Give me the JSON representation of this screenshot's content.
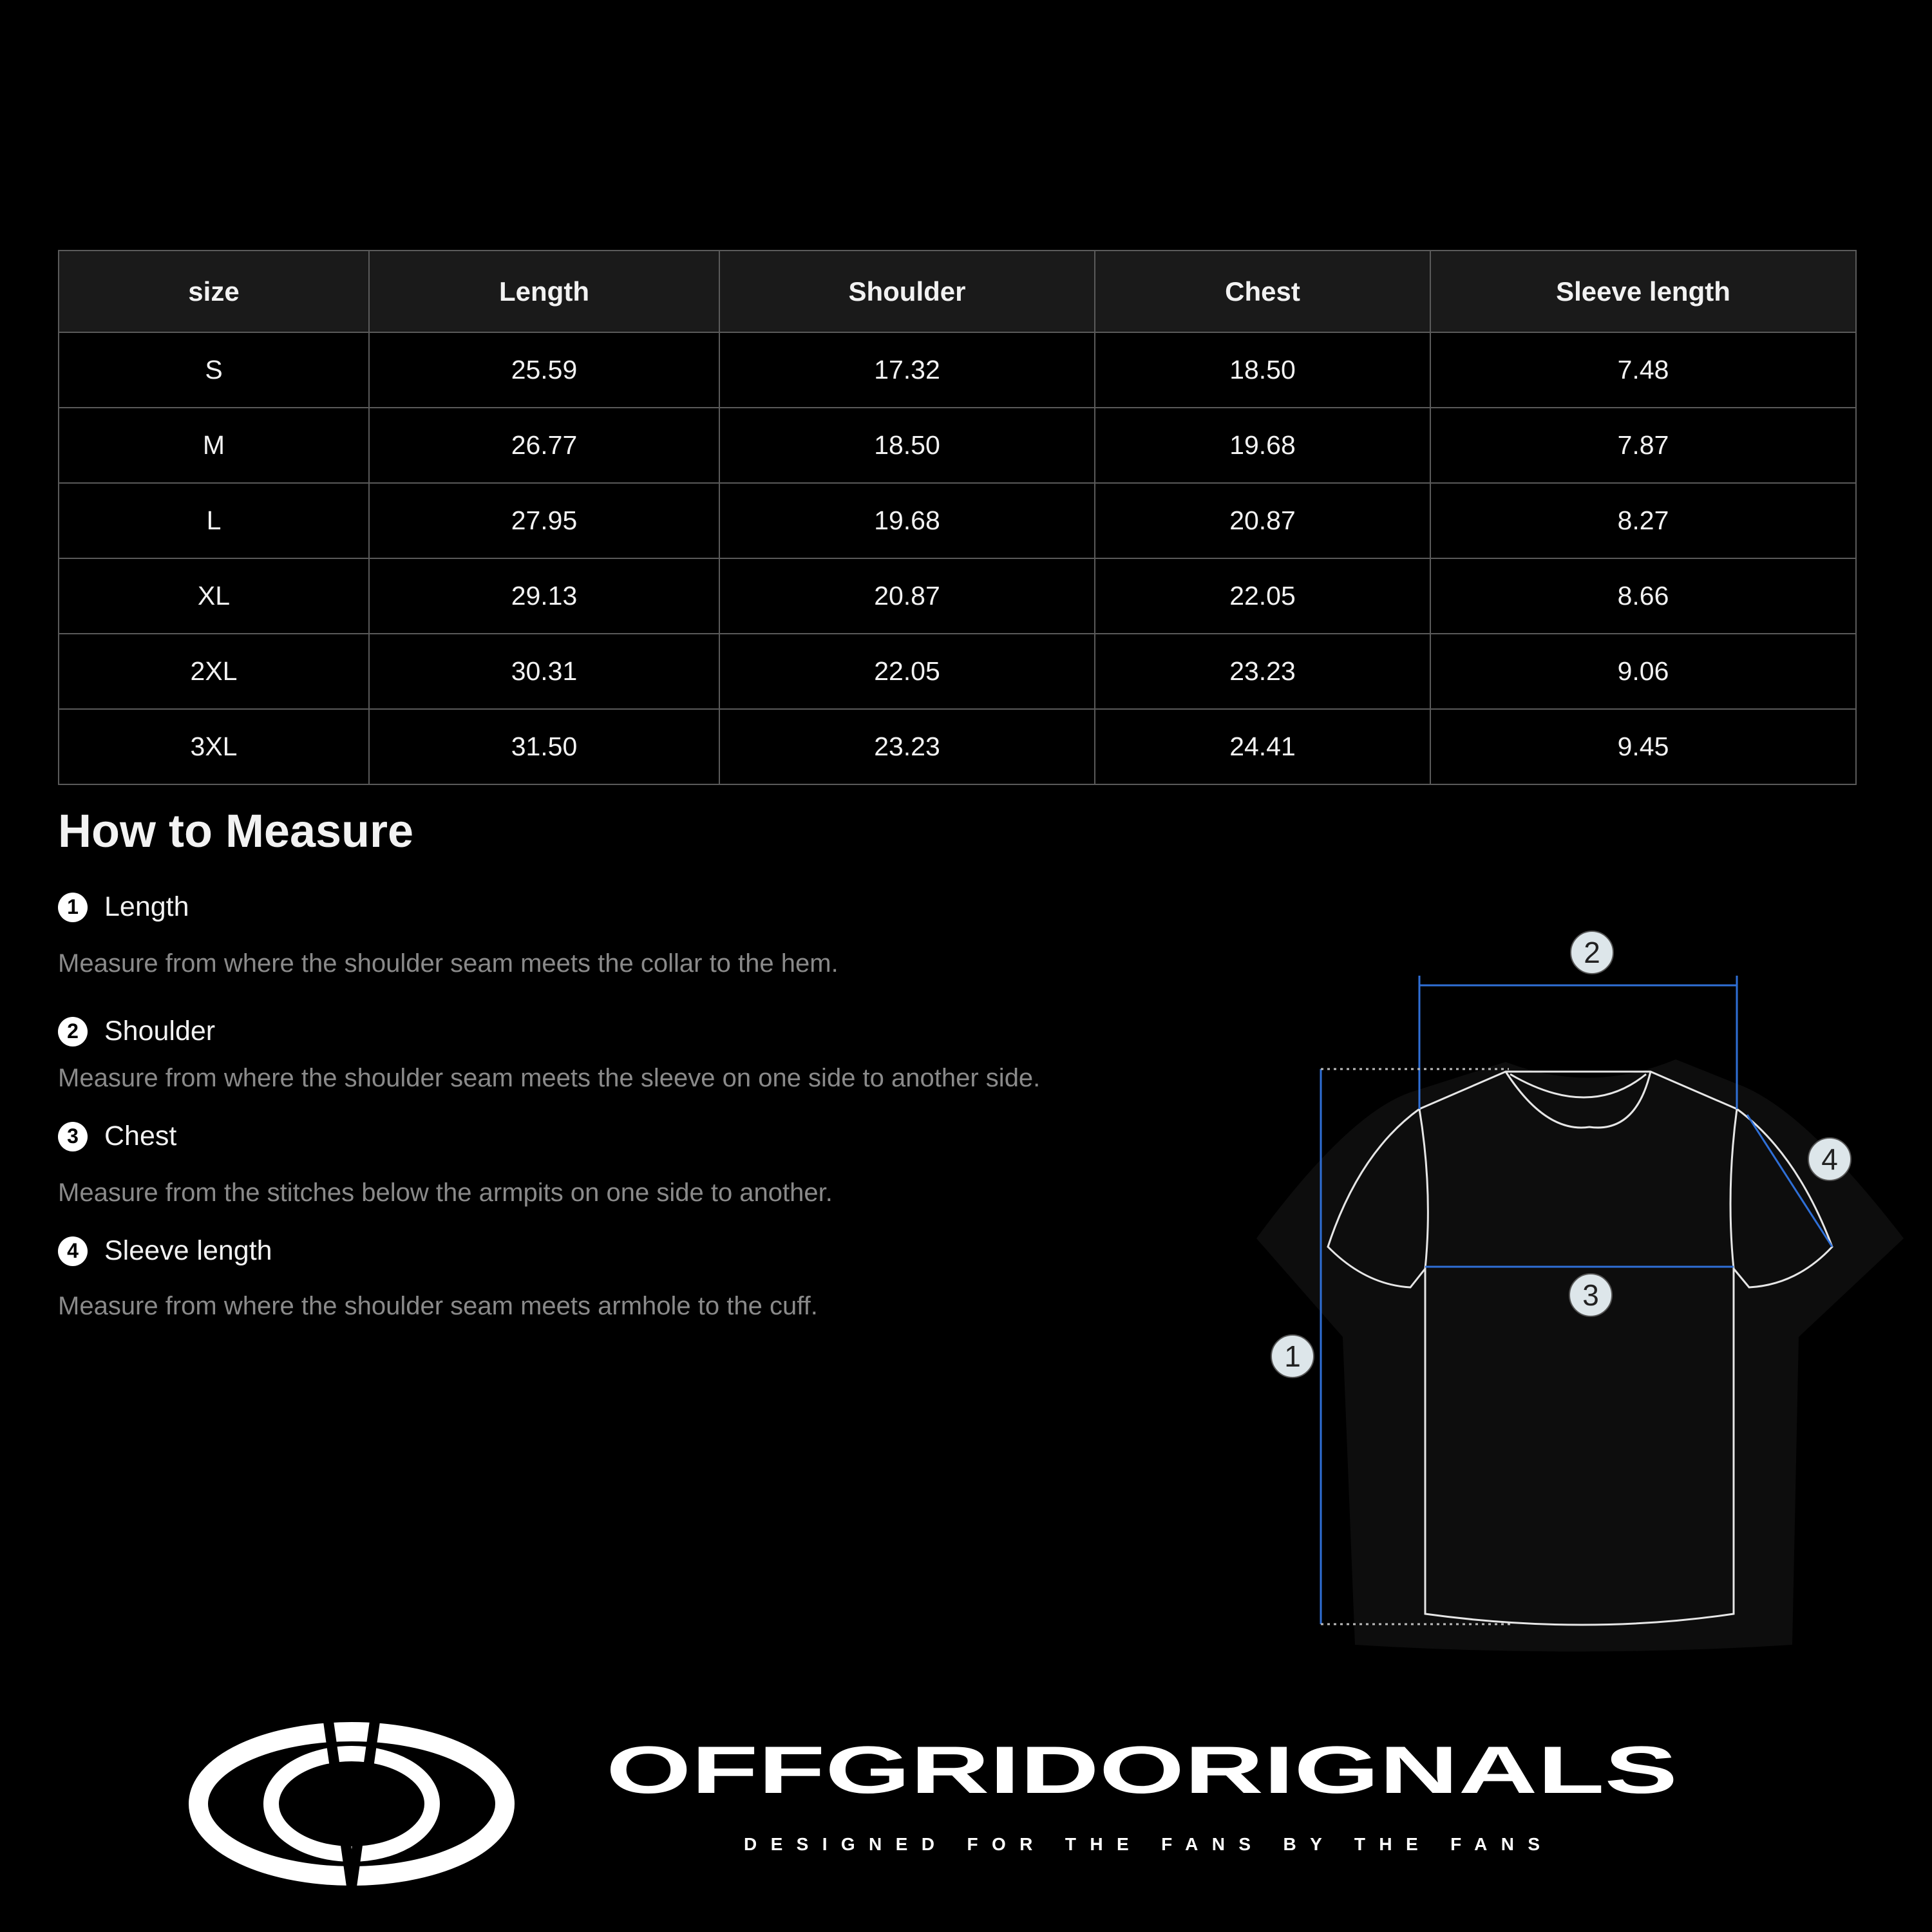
{
  "table": {
    "headers": [
      "size",
      "Length",
      "Shoulder",
      "Chest",
      "Sleeve length"
    ],
    "rows": [
      [
        "S",
        "25.59",
        "17.32",
        "18.50",
        "7.48"
      ],
      [
        "M",
        "26.77",
        "18.50",
        "19.68",
        "7.87"
      ],
      [
        "L",
        "27.95",
        "19.68",
        "20.87",
        "8.27"
      ],
      [
        "XL",
        "29.13",
        "20.87",
        "22.05",
        "8.66"
      ],
      [
        "2XL",
        "30.31",
        "22.05",
        "23.23",
        "9.06"
      ],
      [
        "3XL",
        "31.50",
        "23.23",
        "24.41",
        "9.45"
      ]
    ]
  },
  "measure": {
    "title": "How to Measure",
    "items": [
      {
        "num": "1",
        "label": "Length",
        "desc": "Measure from where the shoulder seam meets the collar to the hem."
      },
      {
        "num": "2",
        "label": "Shoulder",
        "desc": "Measure from where the shoulder seam meets the sleeve on one side to another side."
      },
      {
        "num": "3",
        "label": "Chest",
        "desc": "Measure from the stitches below the armpits on one side to another."
      },
      {
        "num": "4",
        "label": "Sleeve length",
        "desc": "Measure from where the shoulder seam meets armhole to the cuff."
      }
    ]
  },
  "diagram": {
    "markers": [
      "1",
      "2",
      "3",
      "4"
    ],
    "line_color": "#2f6fd6",
    "outline_color": "#e6e6e6"
  },
  "brand": {
    "name": "OFFGRIDORIGNALS",
    "tagline": "DESIGNED FOR THE FANS BY THE FANS"
  }
}
